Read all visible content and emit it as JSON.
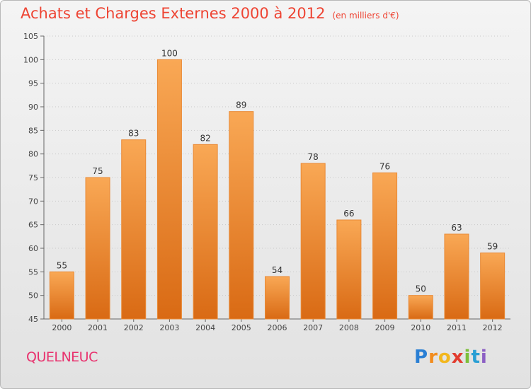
{
  "header": {
    "title": "Achats et Charges Externes 2000 à 2012",
    "unit": "(en milliers d'€)"
  },
  "footer": {
    "commune": "QUELNEUC",
    "brand_letters": [
      "P",
      "r",
      "o",
      "x",
      "i",
      "t",
      "i"
    ],
    "brand_colors": [
      "#2a7fd4",
      "#f28c1e",
      "#f2b71e",
      "#e23c2f",
      "#7cbf3a",
      "#2a9fd4",
      "#8c5fc4"
    ]
  },
  "chart_data": {
    "type": "bar",
    "title": "Achats et Charges Externes 2000 à 2012",
    "subtitle": "(en milliers d'€)",
    "categories": [
      "2000",
      "2001",
      "2002",
      "2003",
      "2004",
      "2005",
      "2006",
      "2007",
      "2008",
      "2009",
      "2010",
      "2011",
      "2012"
    ],
    "values": [
      55,
      75,
      83,
      100,
      82,
      89,
      54,
      78,
      66,
      76,
      50,
      63,
      59
    ],
    "ylim": [
      45,
      105
    ],
    "yticks": [
      45,
      50,
      55,
      60,
      65,
      70,
      75,
      80,
      85,
      90,
      95,
      100,
      105
    ],
    "grid": true,
    "colors": {
      "bar_top": "#f9a855",
      "bar_bottom": "#d96a14",
      "bar_edge": "#e98a36"
    }
  }
}
